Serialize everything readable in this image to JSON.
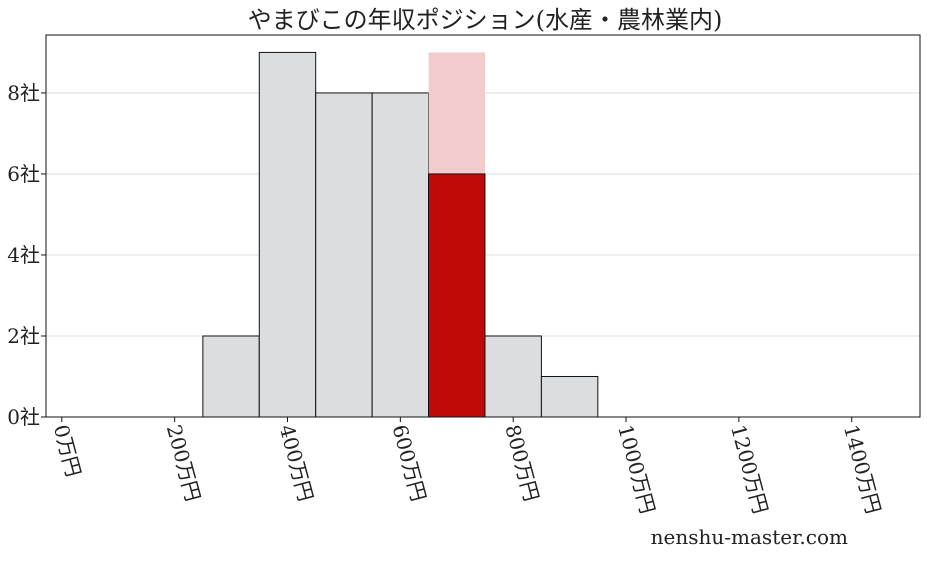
{
  "chart_data": {
    "type": "bar",
    "title": "やまびこの年収ポジション(水産・農林業内)",
    "xlabel": "",
    "ylabel": "",
    "bins": [
      [
        250,
        350
      ],
      [
        350,
        450
      ],
      [
        450,
        550
      ],
      [
        550,
        650
      ],
      [
        650,
        750
      ],
      [
        750,
        850
      ],
      [
        850,
        950
      ]
    ],
    "values": [
      2,
      9,
      8,
      8,
      6,
      2,
      1
    ],
    "highlight_index": 4,
    "highlight_background_value": 9,
    "xlim": [
      -28,
      1521
    ],
    "ylim": [
      0,
      9.43
    ],
    "x_ticks": [
      0,
      200,
      400,
      600,
      800,
      1000,
      1200,
      1400
    ],
    "x_tick_labels": [
      "0万円",
      "200万円",
      "400万円",
      "600万円",
      "800万円",
      "1000万円",
      "1200万円",
      "1400万円"
    ],
    "y_ticks": [
      0,
      2,
      4,
      6,
      8
    ],
    "y_tick_labels": [
      "0社",
      "2社",
      "4社",
      "6社",
      "8社"
    ],
    "grid": "horizontal",
    "colors": {
      "bar": "#dcdddf",
      "highlight": "#c00a0a",
      "highlight_background": "#f2cbcc",
      "edge": "#111111",
      "grid": "#d9d9d9"
    }
  },
  "watermark": "nenshu-master.com"
}
